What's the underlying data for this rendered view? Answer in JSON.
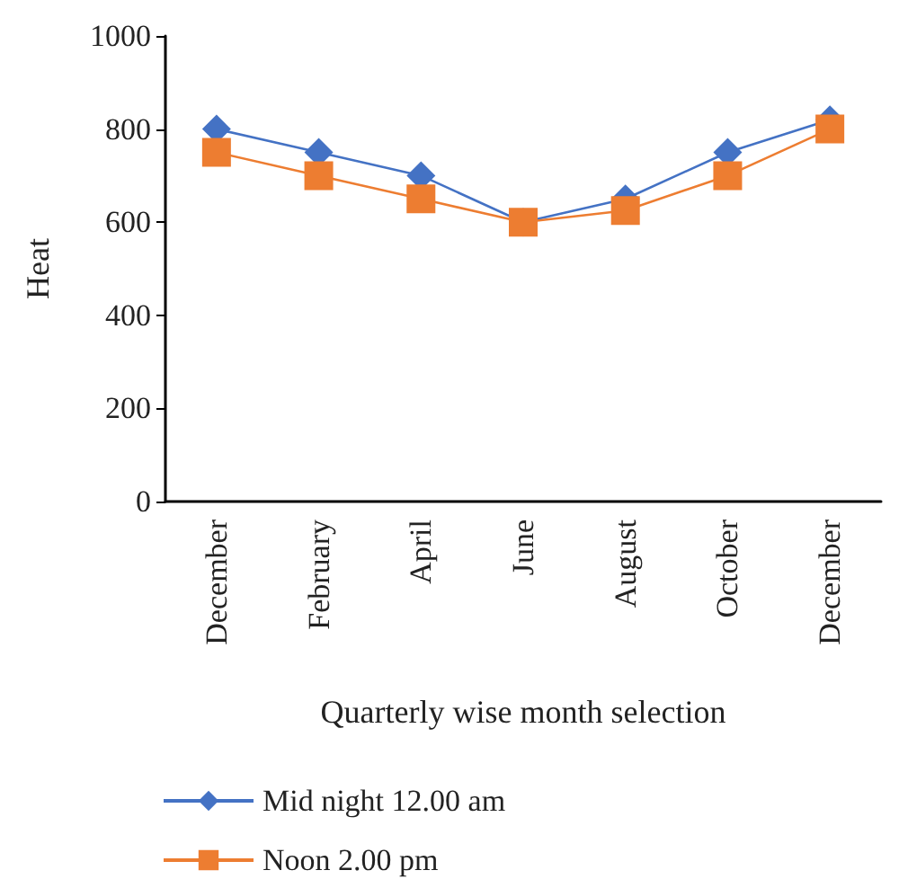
{
  "chart_data": {
    "type": "line",
    "xlabel": "Quarterly wise month selection",
    "ylabel": "Heat",
    "categories": [
      "December",
      "February",
      "April",
      "June",
      "August",
      "October",
      "December"
    ],
    "series": [
      {
        "name": "Mid night 12.00 am",
        "color": "#4472c4",
        "marker": "diamond",
        "values": [
          800,
          750,
          700,
          600,
          650,
          750,
          820
        ]
      },
      {
        "name": "Noon 2.00 pm",
        "color": "#ed7d31",
        "marker": "square",
        "values": [
          750,
          700,
          650,
          600,
          625,
          700,
          800
        ]
      }
    ],
    "ylim": [
      0,
      1000
    ],
    "yticks": [
      0,
      200,
      400,
      600,
      800,
      1000
    ],
    "grid": false,
    "legend": "bottom left",
    "line_style": "solid"
  }
}
